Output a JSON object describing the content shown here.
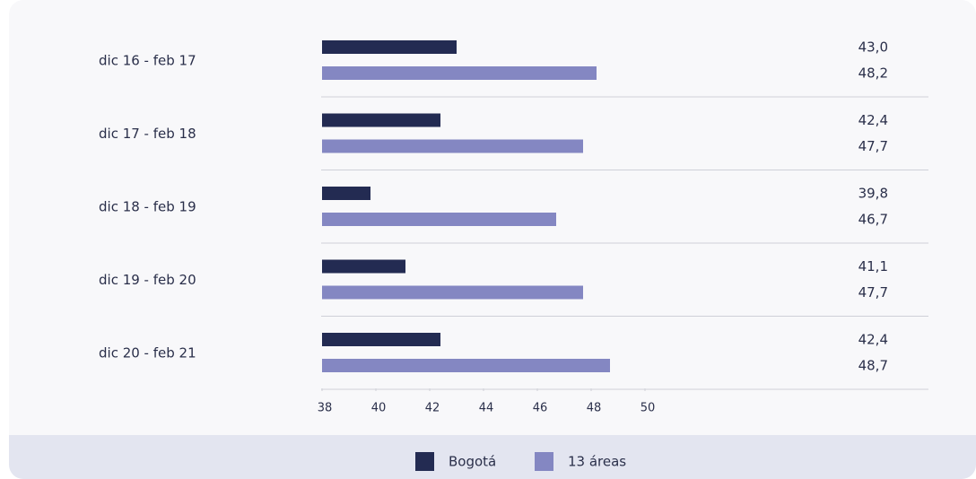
{
  "chart_data": {
    "type": "bar",
    "orientation": "horizontal",
    "categories": [
      "dic 16 - feb 17",
      "dic 17 - feb 18",
      "dic 18 - feb 19",
      "dic 19 - feb 20",
      "dic 20 - feb 21"
    ],
    "series": [
      {
        "name": "Bogotá",
        "color": "#232b52",
        "values": [
          43.0,
          42.4,
          39.8,
          41.1,
          42.4
        ],
        "value_labels": [
          "43,0",
          "42,4",
          "39,8",
          "41,1",
          "42,4"
        ]
      },
      {
        "name": "13 áreas",
        "color": "#8487c2",
        "values": [
          48.2,
          47.7,
          46.7,
          47.7,
          48.7
        ],
        "value_labels": [
          "48,2",
          "47,7",
          "46,7",
          "47,7",
          "48,7"
        ]
      }
    ],
    "xlim": [
      38,
      50
    ],
    "xticks": [
      38,
      40,
      42,
      44,
      46,
      48,
      50
    ]
  }
}
